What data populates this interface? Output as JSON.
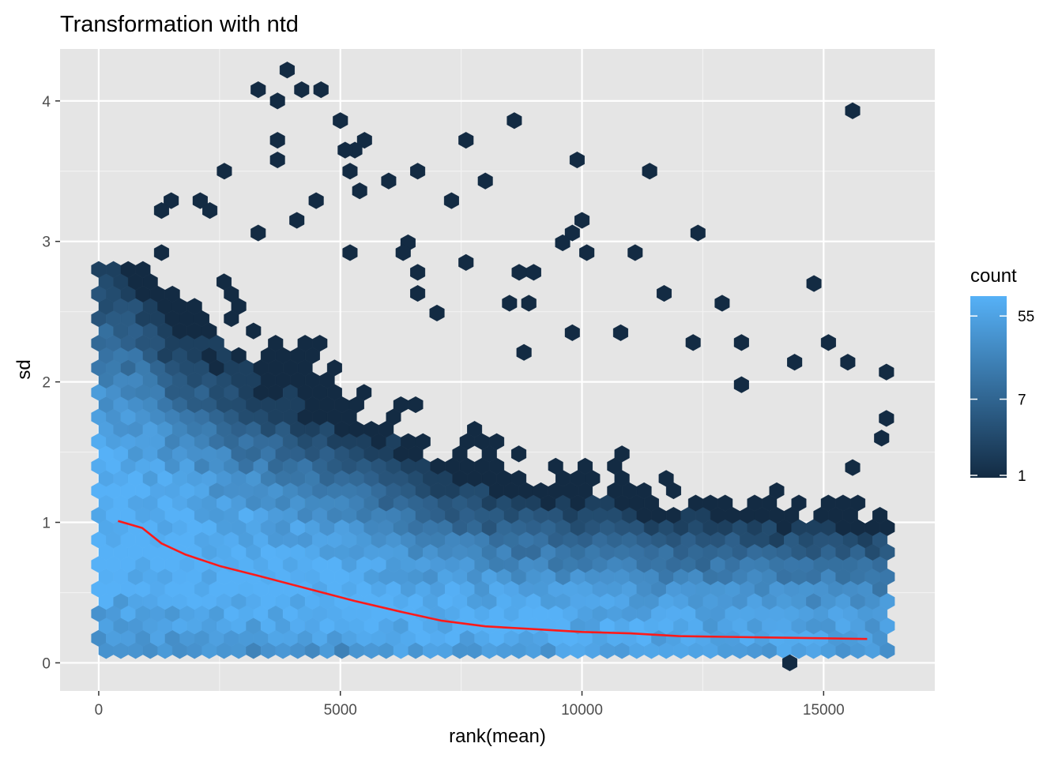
{
  "chart_data": {
    "type": "heatmap",
    "subtype": "hexbin",
    "title": "Transformation with ntd",
    "xlabel": "rank(mean)",
    "ylabel": "sd",
    "xlim": [
      -800,
      17300
    ],
    "ylim": [
      -0.2,
      4.37
    ],
    "x_ticks": [
      0,
      5000,
      10000,
      15000
    ],
    "x_tick_labels": [
      "0",
      "5000",
      "10000",
      "15000"
    ],
    "y_ticks": [
      0,
      1,
      2,
      3,
      4
    ],
    "y_tick_labels": [
      "0",
      "1",
      "2",
      "3",
      "4"
    ],
    "grid": true,
    "panel_background": "#e5e5e5",
    "legend": {
      "title": "count",
      "position": "right",
      "scale": "log",
      "breaks": [
        1,
        7,
        55
      ],
      "break_labels": [
        "1",
        "7",
        "55"
      ],
      "low_color": "#132b43",
      "high_color": "#56b1f7",
      "max_count": 90
    },
    "trend_line": {
      "color": "#ff1a1a",
      "x": [
        400,
        900,
        1300,
        1800,
        2500,
        3300,
        4300,
        5300,
        6300,
        7100,
        8000,
        9000,
        10000,
        11000,
        12000,
        13000,
        14000,
        15000,
        15900
      ],
      "y": [
        1.01,
        0.96,
        0.85,
        0.77,
        0.69,
        0.62,
        0.53,
        0.44,
        0.36,
        0.3,
        0.26,
        0.24,
        0.22,
        0.21,
        0.19,
        0.185,
        0.18,
        0.175,
        0.17
      ]
    },
    "outlier_points": [
      {
        "x": 3900,
        "y": 4.22
      },
      {
        "x": 3300,
        "y": 4.08
      },
      {
        "x": 4200,
        "y": 4.08
      },
      {
        "x": 4600,
        "y": 4.08
      },
      {
        "x": 3700,
        "y": 4.0
      },
      {
        "x": 5000,
        "y": 3.86
      },
      {
        "x": 8600,
        "y": 3.86
      },
      {
        "x": 15600,
        "y": 3.93
      },
      {
        "x": 3700,
        "y": 3.72
      },
      {
        "x": 5500,
        "y": 3.72
      },
      {
        "x": 7600,
        "y": 3.72
      },
      {
        "x": 5300,
        "y": 3.65
      },
      {
        "x": 5100,
        "y": 3.65
      },
      {
        "x": 3700,
        "y": 3.58
      },
      {
        "x": 9900,
        "y": 3.58
      },
      {
        "x": 2600,
        "y": 3.5
      },
      {
        "x": 5200,
        "y": 3.5
      },
      {
        "x": 6600,
        "y": 3.5
      },
      {
        "x": 11400,
        "y": 3.5
      },
      {
        "x": 6000,
        "y": 3.43
      },
      {
        "x": 8000,
        "y": 3.43
      },
      {
        "x": 5400,
        "y": 3.36
      },
      {
        "x": 1500,
        "y": 3.29
      },
      {
        "x": 2100,
        "y": 3.29
      },
      {
        "x": 4500,
        "y": 3.29
      },
      {
        "x": 7300,
        "y": 3.29
      },
      {
        "x": 1300,
        "y": 3.22
      },
      {
        "x": 2300,
        "y": 3.22
      },
      {
        "x": 4100,
        "y": 3.15
      },
      {
        "x": 10000,
        "y": 3.15
      },
      {
        "x": 3300,
        "y": 3.06
      },
      {
        "x": 9800,
        "y": 3.06
      },
      {
        "x": 12400,
        "y": 3.06
      },
      {
        "x": 6400,
        "y": 2.99
      },
      {
        "x": 9600,
        "y": 2.99
      },
      {
        "x": 1300,
        "y": 2.92
      },
      {
        "x": 5200,
        "y": 2.92
      },
      {
        "x": 6300,
        "y": 2.92
      },
      {
        "x": 10100,
        "y": 2.92
      },
      {
        "x": 11100,
        "y": 2.92
      },
      {
        "x": 7600,
        "y": 2.85
      },
      {
        "x": 6600,
        "y": 2.78
      },
      {
        "x": 8700,
        "y": 2.78
      },
      {
        "x": 9000,
        "y": 2.78
      },
      {
        "x": 14800,
        "y": 2.7
      },
      {
        "x": 6600,
        "y": 2.63
      },
      {
        "x": 11700,
        "y": 2.63
      },
      {
        "x": 8500,
        "y": 2.56
      },
      {
        "x": 8900,
        "y": 2.56
      },
      {
        "x": 12900,
        "y": 2.56
      },
      {
        "x": 7000,
        "y": 2.49
      },
      {
        "x": 10800,
        "y": 2.35
      },
      {
        "x": 9800,
        "y": 2.35
      },
      {
        "x": 13300,
        "y": 2.28
      },
      {
        "x": 15100,
        "y": 2.28
      },
      {
        "x": 12300,
        "y": 2.28
      },
      {
        "x": 8800,
        "y": 2.21
      },
      {
        "x": 14400,
        "y": 2.14
      },
      {
        "x": 15500,
        "y": 2.14
      },
      {
        "x": 16300,
        "y": 2.07
      },
      {
        "x": 13300,
        "y": 1.98
      },
      {
        "x": 16300,
        "y": 1.74
      },
      {
        "x": 15600,
        "y": 1.39
      },
      {
        "x": 16200,
        "y": 1.6
      },
      {
        "x": 14300,
        "y": 0.0
      }
    ]
  }
}
